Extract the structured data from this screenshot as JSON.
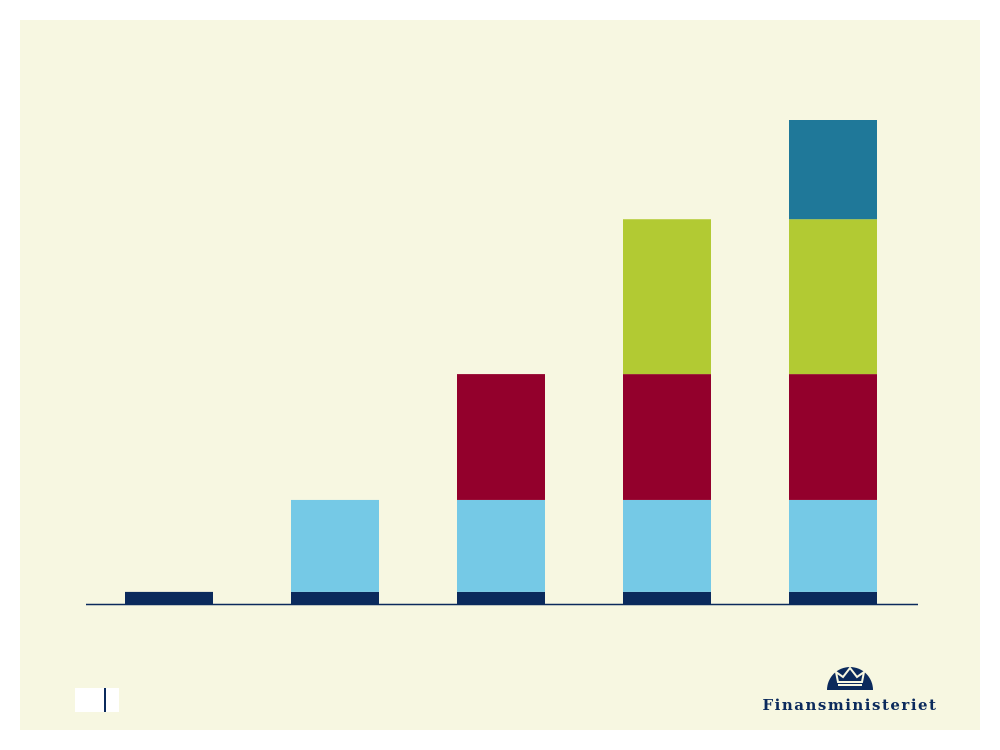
{
  "chart_data": {
    "type": "bar",
    "stacked": true,
    "categories": [
      "",
      "",
      "",
      "",
      ""
    ],
    "ylim": [
      0,
      100
    ],
    "grid": false,
    "series": [
      {
        "color": "#0b2a5c",
        "values": [
          2.5,
          2.5,
          2.5,
          2.5,
          2.5
        ]
      },
      {
        "color": "#75c9e6",
        "values": [
          0,
          19,
          19,
          19,
          19
        ]
      },
      {
        "color": "#93002c",
        "values": [
          0,
          0,
          26,
          26,
          26
        ]
      },
      {
        "color": "#b2ca33",
        "values": [
          0,
          0,
          0,
          32,
          32
        ]
      },
      {
        "color": "#1f7899",
        "values": [
          0,
          0,
          0,
          0,
          20.5
        ]
      }
    ]
  },
  "logo": {
    "text": "Finansministeriet",
    "icon": "crown-icon",
    "color": "#0b2a5c"
  }
}
